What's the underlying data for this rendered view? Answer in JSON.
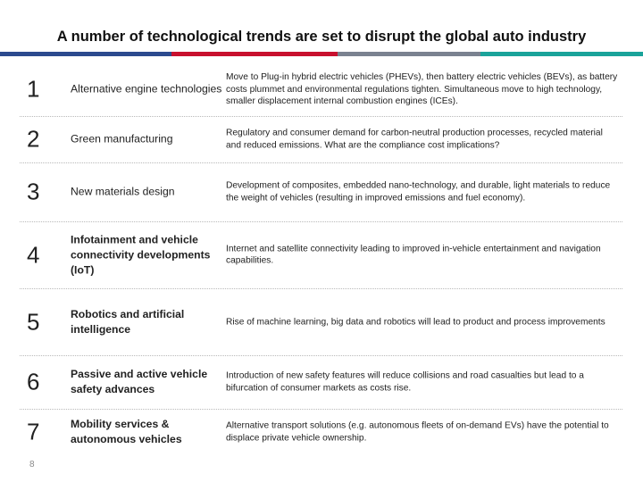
{
  "title": "A number of technological trends are set to disrupt the global auto industry",
  "colors": {
    "bar1": "#2b4a8e",
    "bar2": "#c8102e",
    "bar3": "#7a8290",
    "bar4": "#1aa39a"
  },
  "rows": [
    {
      "number": "1",
      "label": "Alternative engine technologies",
      "description": "Move to Plug-in hybrid electric vehicles (PHEVs), then battery electric vehicles (BEVs), as battery costs plummet and environmental regulations tighten. Simultaneous move to high technology, smaller displacement internal combustion engines (ICEs)."
    },
    {
      "number": "2",
      "label": "Green manufacturing",
      "description": "Regulatory and consumer demand for carbon-neutral production processes, recycled material and reduced emissions. What are the compliance cost implications?"
    },
    {
      "number": "3",
      "label": "New materials design",
      "description": "Development of composites, embedded nano-technology, and durable, light materials to reduce the weight of vehicles (resulting in improved emissions and fuel economy)."
    },
    {
      "number": "4",
      "label": "Infotainment and vehicle connectivity developments (IoT)",
      "description": "Internet and satellite connectivity leading to improved in-vehicle entertainment and navigation capabilities."
    },
    {
      "number": "5",
      "label": "Robotics and artificial intelligence",
      "description": "Rise of machine learning, big data and robotics will lead to product and process improvements"
    },
    {
      "number": "6",
      "label": "Passive and active vehicle safety advances",
      "description": "Introduction of new safety features will reduce collisions and road casualties but lead to a bifurcation of consumer markets as costs rise."
    },
    {
      "number": "7",
      "label": "Mobility services & autonomous vehicles",
      "description": "Alternative transport solutions (e.g. autonomous fleets of on-demand EVs) have the potential to displace private vehicle ownership."
    }
  ],
  "page_number": "8"
}
